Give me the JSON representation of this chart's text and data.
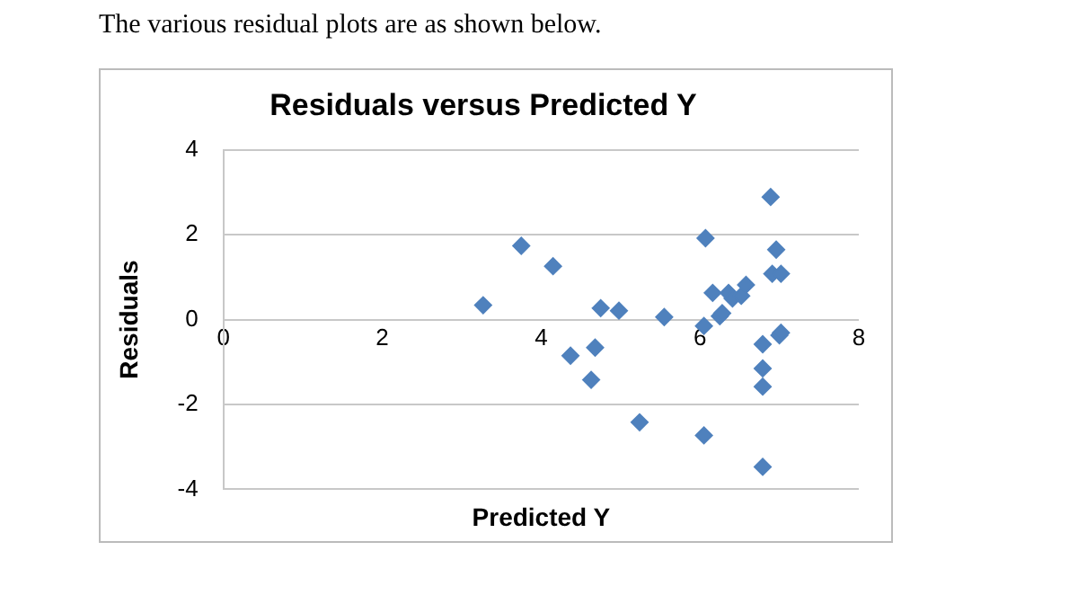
{
  "chart_data": {
    "type": "scatter",
    "title": "Residuals versus Predicted Y",
    "xlabel": "Predicted Y",
    "ylabel": "Residuals",
    "annotations": [
      "The various residual plots are as shown below."
    ],
    "x": [
      3.27,
      3.75,
      4.15,
      4.37,
      4.68,
      4.63,
      4.75,
      4.98,
      5.24,
      5.55,
      6.07,
      6.05,
      6.05,
      6.16,
      6.25,
      6.28,
      6.36,
      6.41,
      6.52,
      6.58,
      6.89,
      6.96,
      6.91,
      7.02,
      6.79,
      6.79,
      6.79,
      6.79,
      7.0,
      7.02
    ],
    "series": [
      {
        "color": "#4f81bd",
        "values": [
          0.34,
          1.74,
          1.26,
          -0.85,
          -0.66,
          -1.42,
          0.27,
          0.21,
          -2.42,
          0.06,
          1.92,
          -2.73,
          -0.15,
          0.63,
          0.08,
          0.15,
          0.63,
          0.5,
          0.56,
          0.82,
          2.89,
          1.65,
          1.08,
          1.08,
          -0.58,
          -1.15,
          -1.58,
          -3.47,
          -0.37,
          -0.31
        ]
      }
    ],
    "xlim": [
      0,
      8
    ],
    "xticks": [
      0,
      2,
      4,
      6,
      8
    ],
    "ylim": [
      -4,
      4
    ],
    "yticks": [
      -4,
      -2,
      0,
      2,
      4
    ],
    "grid": "y",
    "legend": false,
    "marker": "diamond"
  }
}
